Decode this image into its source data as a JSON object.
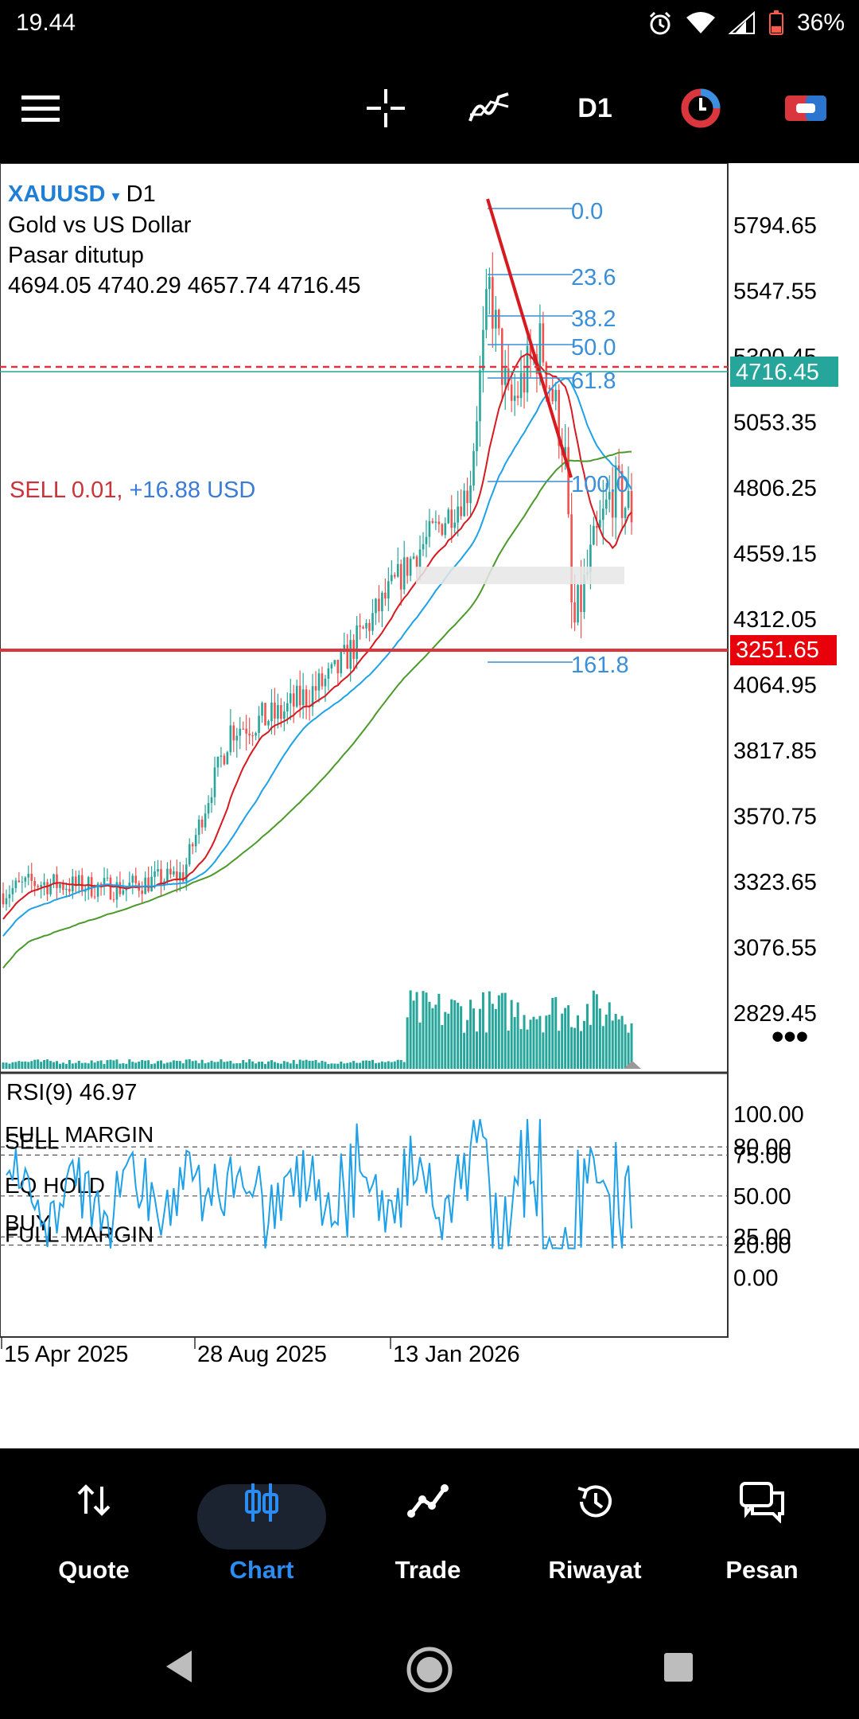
{
  "status": {
    "time": "19.44",
    "battery": "36%",
    "icons": [
      "alarm-icon",
      "wifi-icon",
      "signal-icon",
      "battery-icon"
    ]
  },
  "toolbar": {
    "timeframe": "D1",
    "icons": [
      "menu-icon",
      "crosshair-icon",
      "indicators-icon",
      "timeframe",
      "objects-icon",
      "trade-icon"
    ]
  },
  "chart": {
    "symbol": "XAUUSD",
    "dropdown_arrow": "▾",
    "timeframe": "D1",
    "description": "Gold vs US Dollar",
    "market_status": "Pasar ditutup",
    "ohlc": "4694.05 4740.29 4657.74 4716.45",
    "position_label": "SELL 0.01,",
    "position_profit": "+16.88 USD",
    "current_price": "4716.45",
    "hline_price": "3251.65",
    "more_icon": "•••",
    "price_axis": [
      "5794.65",
      "5547.55",
      "5300.45",
      "5053.35",
      "4806.25",
      "4559.15",
      "4312.05",
      "4064.95",
      "3817.85",
      "3570.75",
      "3323.65",
      "3076.55",
      "2829.45"
    ],
    "fib_levels": [
      "0.0",
      "23.6",
      "38.2",
      "50.0",
      "61.8",
      "100.0",
      "161.8"
    ],
    "colors": {
      "bull": "#26a69a",
      "bear": "#ef5350",
      "sell_line": "#d9363e",
      "ma_red": "#d71920",
      "ma_blue": "#1ea1e8",
      "ma_green": "#4c9a2a",
      "fib": "#3a8fd8"
    }
  },
  "rsi": {
    "label": "RSI(9) 46.97",
    "axis": [
      "100.00",
      "80.00",
      "75.00",
      "50.00",
      "25.00",
      "20.00",
      "0.00"
    ],
    "level_labels": [
      "FULL MARGIN",
      "SELL",
      "EQ HOLD",
      "BUY",
      "FULL MARGIN"
    ]
  },
  "dates": [
    "15 Apr 2025",
    "28 Aug 2025",
    "13 Jan 2026"
  ],
  "nav": {
    "items": [
      {
        "label": "Quote",
        "icon": "arrows-updown-icon"
      },
      {
        "label": "Chart",
        "icon": "candles-icon"
      },
      {
        "label": "Trade",
        "icon": "trend-icon"
      },
      {
        "label": "Riwayat",
        "icon": "history-icon"
      },
      {
        "label": "Pesan",
        "icon": "chat-icon"
      }
    ],
    "active": "Chart"
  },
  "system_nav": [
    "back-icon",
    "home-icon",
    "recents-icon"
  ]
}
